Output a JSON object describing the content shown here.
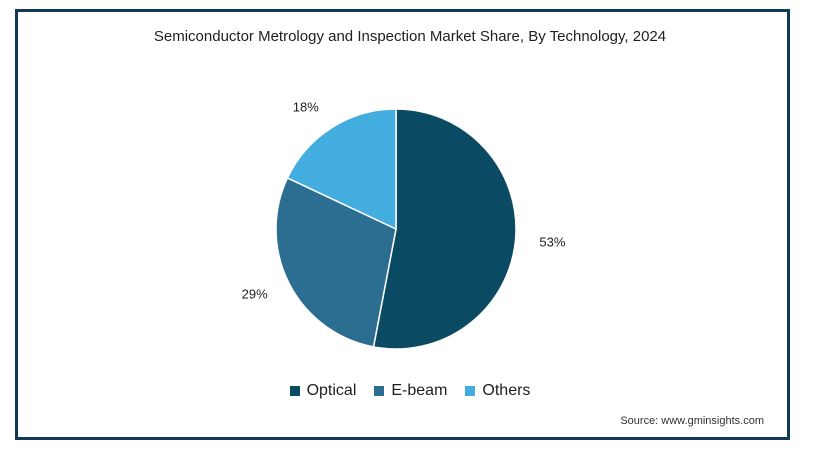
{
  "chart_data": {
    "type": "pie",
    "title": "Semiconductor Metrology and Inspection Market Share, By Technology, 2024",
    "slices": [
      {
        "name": "Optical",
        "value": 53,
        "label": "53%",
        "color": "#0b4a63"
      },
      {
        "name": "E-beam",
        "value": 29,
        "label": "29%",
        "color": "#2c6e91"
      },
      {
        "name": "Others",
        "value": 18,
        "label": "18%",
        "color": "#44ade0"
      }
    ],
    "legend_position": "bottom",
    "source": "Source: www.gminsights.com"
  }
}
